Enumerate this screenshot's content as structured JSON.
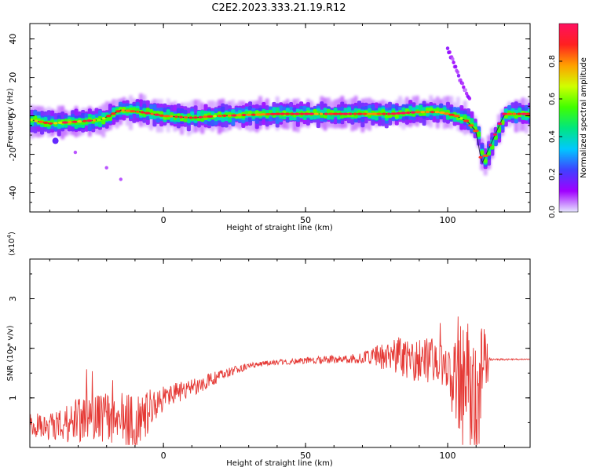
{
  "title": "C2E2.2023.333.21.19.R12",
  "chart_data": [
    {
      "type": "heatmap",
      "xlabel": "Height of straight line (km)",
      "ylabel": "Frequency (Hz)",
      "xlim": [
        -47,
        129
      ],
      "ylim": [
        -50,
        48
      ],
      "xticks": [
        "0",
        "50",
        "100"
      ],
      "yticks": [
        "40",
        "20",
        "0",
        "-20",
        "-40"
      ],
      "colorbar": {
        "label": "Normalized spectral amplitude",
        "range": [
          0,
          1
        ],
        "ticks": [
          "0.0",
          "0.2",
          "0.4",
          "0.6",
          "0.8"
        ],
        "colors": [
          "#e6e6ff",
          "#a000ff",
          "#4040ff",
          "#00c8ff",
          "#00e680",
          "#40ff00",
          "#d0ff00",
          "#ffa000",
          "#ff2020",
          "#ff1060"
        ]
      },
      "ridge": {
        "x": [
          -47,
          -40,
          -30,
          -22,
          -15,
          -8,
          0,
          10,
          20,
          40,
          60,
          80,
          90,
          97,
          103,
          107,
          110,
          112,
          120,
          129
        ],
        "y": [
          -2,
          -4,
          -3,
          -2,
          3,
          2,
          0,
          -1,
          0,
          1,
          1,
          1,
          2,
          2,
          0,
          -3,
          -8,
          -25,
          1,
          1
        ]
      },
      "branch": {
        "x": [
          100,
          102,
          104,
          106,
          108
        ],
        "y": [
          35,
          28,
          20,
          14,
          8
        ]
      },
      "blobs": [
        {
          "x": -38,
          "y": -13
        },
        {
          "x": -31,
          "y": -19
        },
        {
          "x": -20,
          "y": -27
        },
        {
          "x": -15,
          "y": -33
        }
      ]
    },
    {
      "type": "line",
      "xlabel": "Height of straight line (km)",
      "ylabel": "SNR (10 * v/v)",
      "ylabel_scale": "(x10",
      "ylabel_exp": "4",
      "ylabel_close": ")",
      "xlim": [
        -47,
        129
      ],
      "ylim": [
        0,
        3.8
      ],
      "xticks": [
        "0",
        "50",
        "100"
      ],
      "yticks": [
        "1",
        "2",
        "3"
      ],
      "color": "#e53935",
      "envelope": {
        "x": [
          -47,
          -40,
          -30,
          -20,
          -10,
          0,
          10,
          20,
          30,
          40,
          50,
          60,
          70,
          80,
          90,
          100,
          103,
          106,
          110,
          113,
          115,
          129
        ],
        "base": [
          0.45,
          0.4,
          0.55,
          0.6,
          0.5,
          1.0,
          1.2,
          1.45,
          1.65,
          1.72,
          1.75,
          1.78,
          1.8,
          1.85,
          1.75,
          1.7,
          1.4,
          1.2,
          1.0,
          1.6,
          1.77,
          1.78
        ],
        "amplitude": [
          0.25,
          0.3,
          0.45,
          0.5,
          0.6,
          0.25,
          0.18,
          0.12,
          0.06,
          0.05,
          0.07,
          0.08,
          0.1,
          0.35,
          0.45,
          0.5,
          1.3,
          1.5,
          1.6,
          0.8,
          0.02,
          0.01
        ]
      }
    }
  ]
}
